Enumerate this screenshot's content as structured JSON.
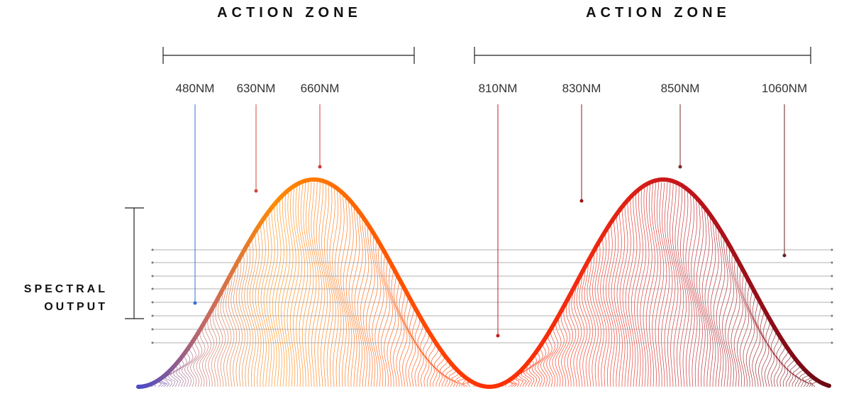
{
  "zones": [
    "ACTION ZONE",
    "ACTION ZONE"
  ],
  "wavelengths": [
    "480NM",
    "630NM",
    "660NM",
    "810NM",
    "830NM",
    "850NM",
    "1060NM"
  ],
  "side_label": [
    "SPECTRAL",
    "OUTPUT"
  ]
}
